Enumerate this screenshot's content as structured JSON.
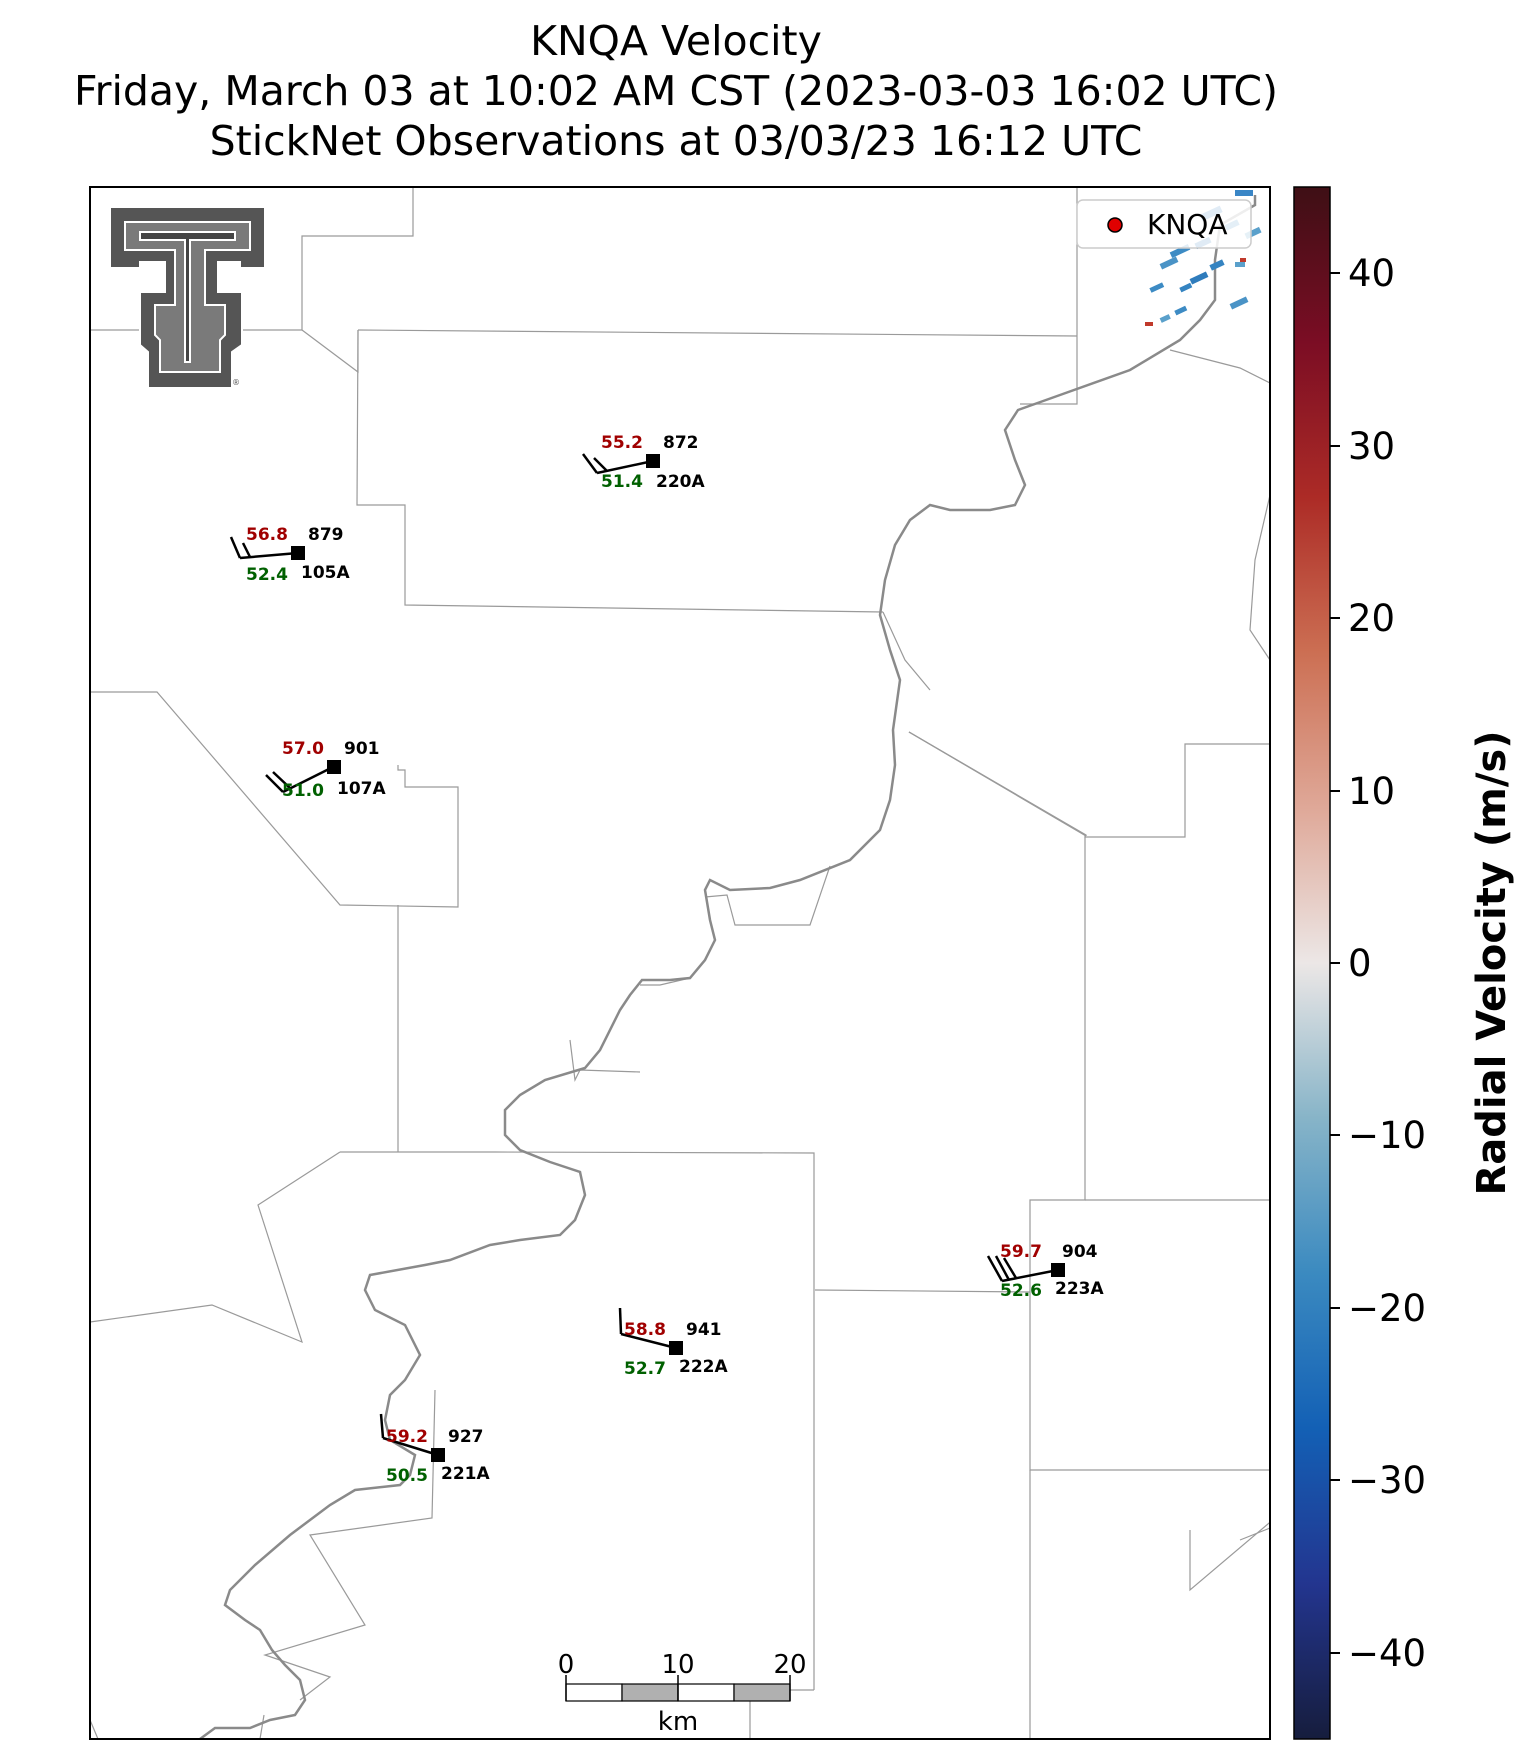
{
  "title": {
    "line1": "KNQA Velocity",
    "line2": "Friday, March 03 at 10:02 AM CST (2023-03-03 16:02 UTC)",
    "line3": "StickNet Observations at 03/03/23 16:12 UTC"
  },
  "legend": {
    "label": "KNQA",
    "marker_color": "#e00000"
  },
  "colorbar": {
    "label": "Radial Velocity (m/s)",
    "ticks": [
      "40",
      "30",
      "20",
      "10",
      "0",
      "−10",
      "−20",
      "−30",
      "−40"
    ],
    "range": [
      -45,
      45
    ]
  },
  "scalebar": {
    "labels": [
      "0",
      "10",
      "20"
    ],
    "unit": "km"
  },
  "stations": [
    {
      "temp": "55.2",
      "dew": "51.4",
      "num": "872",
      "name": "220A"
    },
    {
      "temp": "56.8",
      "dew": "52.4",
      "num": "879",
      "name": "105A"
    },
    {
      "temp": "57.0",
      "dew": "51.0",
      "num": "901",
      "name": "107A"
    },
    {
      "temp": "59.7",
      "dew": "52.6",
      "num": "904",
      "name": "223A"
    },
    {
      "temp": "58.8",
      "dew": "52.7",
      "num": "941",
      "name": "222A"
    },
    {
      "temp": "59.2",
      "dew": "50.5",
      "num": "927",
      "name": "221A"
    }
  ],
  "logo": {
    "name": "Texas Tech Double T"
  }
}
